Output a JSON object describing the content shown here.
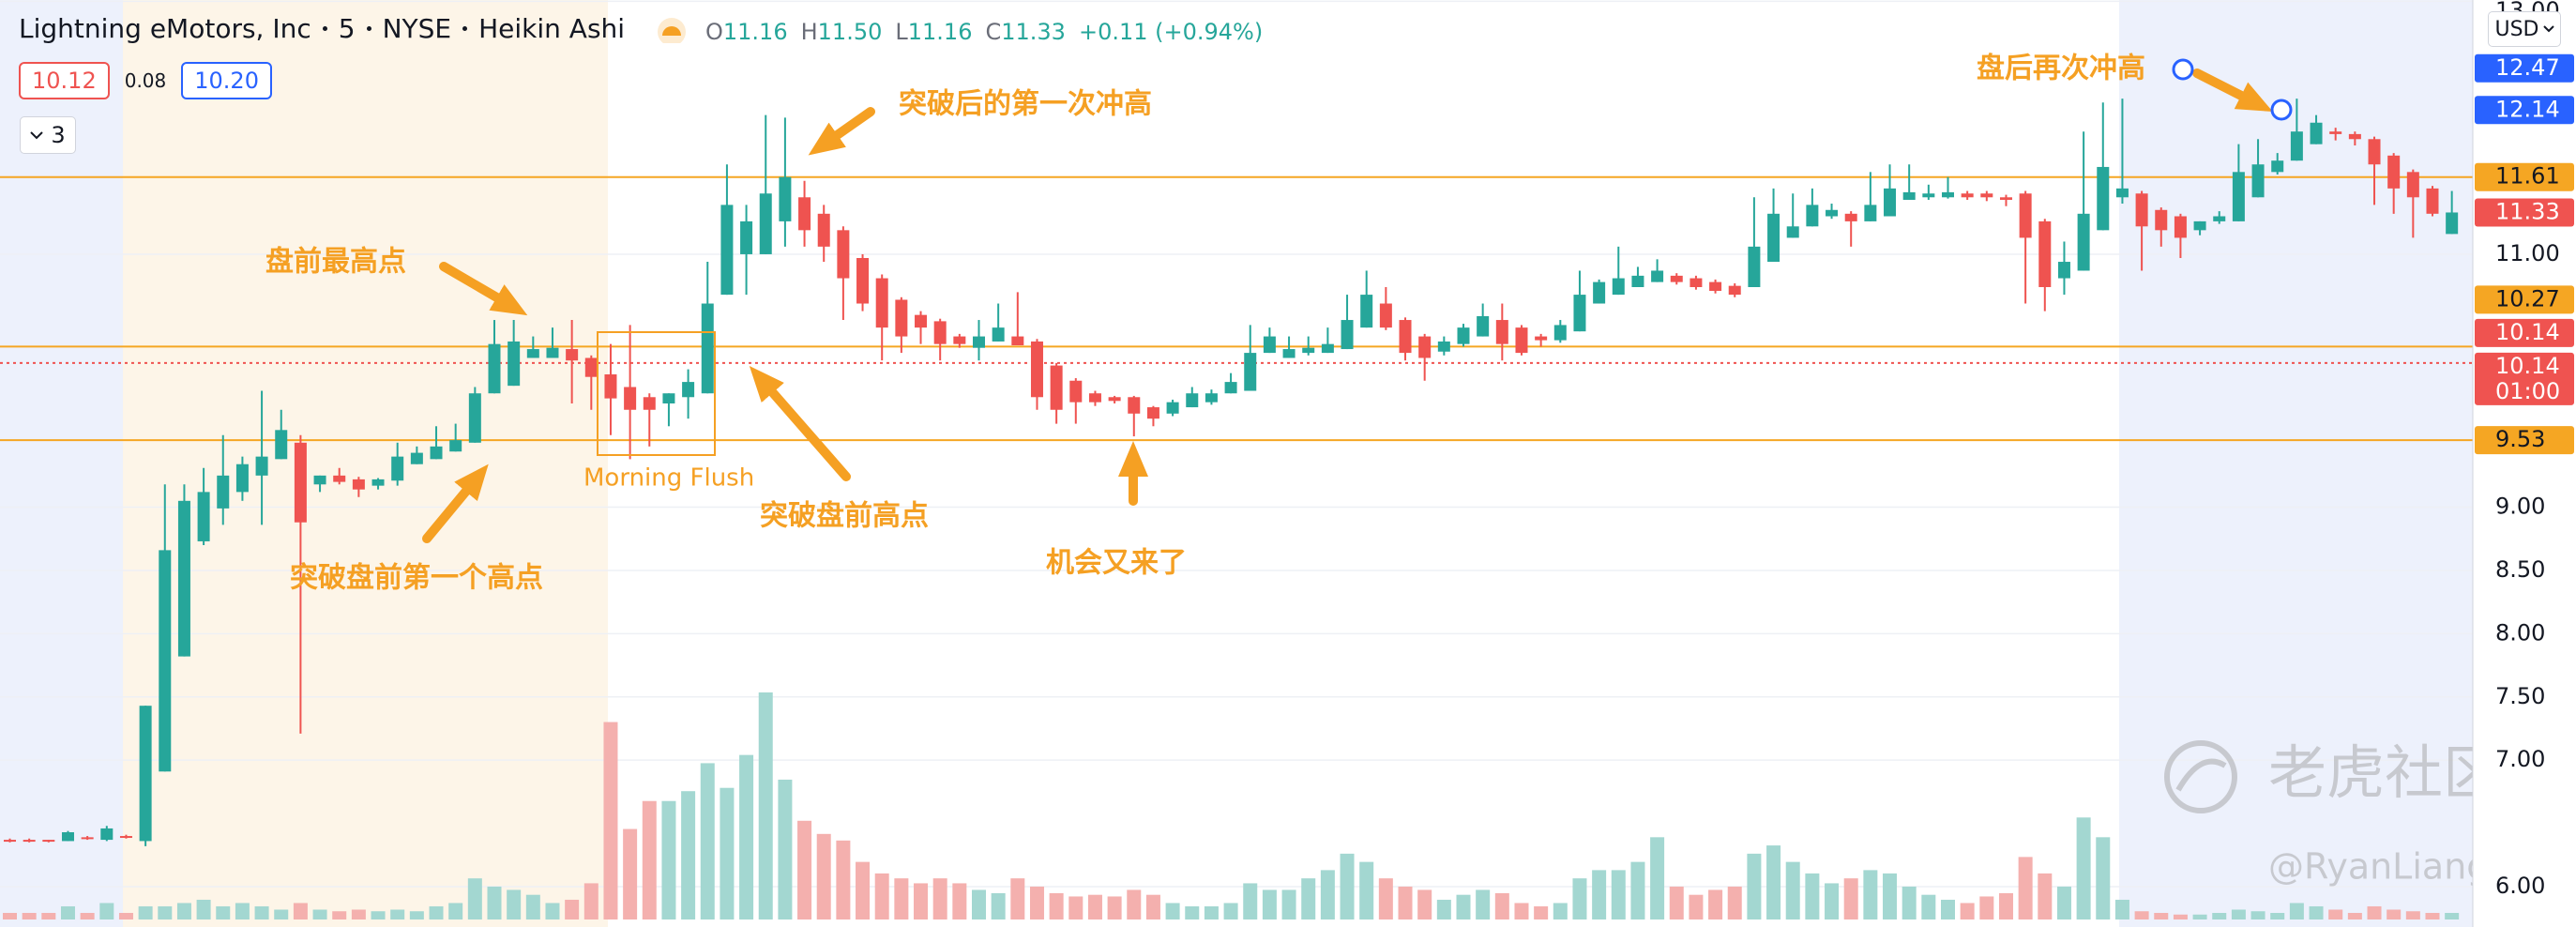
{
  "chart_data": {
    "type": "candlestick",
    "title": "Lightning eMotors, Inc",
    "interval": "5",
    "exchange": "NYSE",
    "chart_style": "Heikin Ashi",
    "ohlc_legend": [
      {
        "key": "O",
        "value": "11.16"
      },
      {
        "key": "H",
        "value": "11.50"
      },
      {
        "key": "L",
        "value": "11.16"
      },
      {
        "key": "C",
        "value": "11.33"
      }
    ],
    "change": "+0.11 (+0.94%)",
    "quote": [
      "10.12",
      "0.08",
      "10.20"
    ],
    "indicator_count": 3,
    "currency": "USD",
    "up_color": "#26a69a",
    "down_color": "#ef5350",
    "up_volume_color": "#a3d7d1",
    "down_volume_color": "#f4b0ae",
    "open": [
      6.37,
      6.37,
      6.37,
      6.36,
      6.39,
      6.37,
      6.4,
      6.36,
      6.91,
      7.82,
      8.73,
      8.99,
      9.12,
      9.25,
      9.38,
      9.51,
      9.18,
      9.25,
      9.22,
      9.17,
      9.21,
      9.34,
      9.38,
      9.44,
      9.51,
      9.9,
      9.96,
      10.18,
      10.18,
      10.25,
      10.18,
      10.05,
      9.95,
      9.87,
      9.82,
      9.87,
      9.9,
      10.68,
      11.0,
      11.0,
      11.26,
      11.45,
      11.32,
      11.19,
      10.97,
      10.81,
      10.64,
      10.52,
      10.47,
      10.35,
      10.26,
      10.31,
      10.35,
      10.31,
      10.12,
      10.0,
      9.9,
      9.87,
      9.87,
      9.79,
      9.74,
      9.79,
      9.83,
      9.9,
      9.92,
      10.22,
      10.18,
      10.22,
      10.22,
      10.25,
      10.42,
      10.61,
      10.48,
      10.35,
      10.23,
      10.29,
      10.35,
      10.48,
      10.42,
      10.35,
      10.32,
      10.39,
      10.61,
      10.68,
      10.74,
      10.78,
      10.83,
      10.81,
      10.78,
      10.75,
      10.74,
      10.94,
      11.13,
      11.22,
      11.3,
      11.32,
      11.26,
      11.3,
      11.43,
      11.45,
      11.45,
      11.48,
      11.48,
      11.45,
      11.48,
      11.26,
      10.81,
      10.87,
      11.19,
      11.45,
      11.48,
      11.35,
      11.3,
      11.19,
      11.26,
      11.26,
      11.45,
      11.65,
      11.74,
      11.87,
      11.97,
      11.95,
      11.91,
      11.78,
      11.65,
      11.52,
      11.16
    ],
    "high": [
      6.38,
      6.38,
      6.37,
      6.44,
      6.4,
      6.48,
      6.41,
      7.43,
      9.18,
      9.18,
      9.31,
      9.57,
      9.4,
      9.92,
      9.77,
      9.57,
      9.25,
      9.31,
      9.24,
      9.23,
      9.51,
      9.48,
      9.64,
      9.66,
      9.95,
      10.48,
      10.48,
      10.35,
      10.42,
      10.48,
      10.2,
      10.29,
      10.44,
      9.9,
      9.9,
      10.09,
      10.94,
      11.71,
      11.39,
      12.1,
      12.08,
      11.58,
      11.39,
      11.22,
      11.0,
      10.84,
      10.66,
      10.55,
      10.49,
      10.37,
      10.48,
      10.61,
      10.7,
      10.33,
      10.14,
      10.02,
      9.92,
      9.88,
      9.88,
      9.8,
      9.85,
      9.95,
      9.93,
      10.06,
      10.44,
      10.42,
      10.35,
      10.35,
      10.42,
      10.68,
      10.87,
      10.74,
      10.5,
      10.37,
      10.35,
      10.45,
      10.61,
      10.61,
      10.44,
      10.37,
      10.48,
      10.87,
      10.8,
      11.06,
      10.9,
      10.96,
      10.85,
      10.83,
      10.8,
      10.77,
      11.45,
      11.52,
      11.48,
      11.52,
      11.4,
      11.34,
      11.65,
      11.71,
      11.71,
      11.55,
      11.61,
      11.5,
      11.5,
      11.47,
      11.5,
      11.28,
      11.1,
      11.97,
      12.2,
      12.23,
      11.5,
      11.37,
      11.32,
      11.26,
      11.34,
      11.87,
      11.91,
      11.8,
      12.23,
      12.1,
      12.0,
      11.97,
      11.93,
      11.8,
      11.67,
      11.54,
      11.5
    ],
    "low": [
      6.35,
      6.35,
      6.35,
      6.36,
      6.37,
      6.36,
      6.38,
      6.32,
      6.91,
      7.82,
      8.7,
      8.86,
      9.05,
      8.86,
      9.38,
      7.21,
      9.12,
      9.18,
      9.08,
      9.14,
      9.17,
      9.34,
      9.38,
      9.44,
      9.51,
      9.9,
      9.96,
      10.18,
      10.18,
      9.82,
      9.77,
      9.57,
      9.38,
      9.48,
      9.64,
      9.7,
      9.9,
      10.68,
      10.68,
      11.0,
      11.06,
      11.06,
      10.94,
      10.48,
      10.55,
      10.16,
      10.22,
      10.29,
      10.16,
      10.26,
      10.16,
      10.31,
      10.28,
      9.77,
      9.66,
      9.66,
      9.8,
      9.82,
      9.56,
      9.64,
      9.72,
      9.79,
      9.81,
      9.9,
      9.92,
      10.22,
      10.18,
      10.2,
      10.22,
      10.25,
      10.42,
      10.4,
      10.16,
      10.0,
      10.2,
      10.27,
      10.35,
      10.16,
      10.2,
      10.27,
      10.3,
      10.39,
      10.61,
      10.68,
      10.74,
      10.78,
      10.76,
      10.72,
      10.69,
      10.66,
      10.74,
      10.94,
      11.13,
      11.22,
      11.28,
      11.06,
      11.26,
      11.3,
      11.43,
      11.43,
      11.44,
      11.43,
      11.42,
      11.38,
      10.61,
      10.55,
      10.68,
      10.87,
      11.19,
      11.4,
      10.87,
      11.06,
      10.97,
      11.15,
      11.24,
      11.26,
      11.45,
      11.63,
      11.74,
      11.87,
      11.9,
      11.86,
      11.39,
      11.32,
      11.13,
      11.3,
      11.16
    ],
    "close": [
      6.36,
      6.36,
      6.36,
      6.43,
      6.38,
      6.46,
      6.39,
      7.43,
      8.66,
      9.05,
      9.12,
      9.25,
      9.34,
      9.4,
      9.61,
      8.88,
      9.25,
      9.2,
      9.14,
      9.22,
      9.4,
      9.43,
      9.48,
      9.53,
      9.9,
      10.29,
      10.31,
      10.25,
      10.26,
      10.16,
      10.03,
      9.86,
      9.77,
      9.77,
      9.9,
      9.99,
      10.61,
      11.39,
      11.26,
      11.48,
      11.61,
      11.19,
      11.06,
      10.81,
      10.61,
      10.42,
      10.35,
      10.42,
      10.29,
      10.29,
      10.35,
      10.42,
      10.28,
      9.87,
      9.77,
      9.83,
      9.83,
      9.84,
      9.74,
      9.7,
      9.83,
      9.9,
      9.9,
      9.99,
      10.22,
      10.35,
      10.25,
      10.26,
      10.29,
      10.48,
      10.68,
      10.42,
      10.22,
      10.18,
      10.31,
      10.42,
      10.51,
      10.29,
      10.22,
      10.32,
      10.44,
      10.68,
      10.78,
      10.81,
      10.83,
      10.87,
      10.78,
      10.74,
      10.71,
      10.68,
      11.06,
      11.32,
      11.22,
      11.39,
      11.35,
      11.26,
      11.39,
      11.52,
      11.49,
      11.48,
      11.49,
      11.45,
      11.45,
      11.43,
      11.13,
      10.74,
      10.94,
      11.32,
      11.69,
      11.52,
      11.22,
      11.19,
      11.13,
      11.26,
      11.3,
      11.65,
      11.71,
      11.74,
      11.97,
      12.04,
      11.95,
      11.91,
      11.71,
      11.52,
      11.45,
      11.32,
      11.33
    ],
    "volume": [
      4,
      4,
      4,
      8,
      4,
      10,
      4,
      8,
      8,
      10,
      12,
      8,
      10,
      8,
      6,
      10,
      6,
      5,
      6,
      5,
      6,
      5,
      8,
      10,
      25,
      20,
      18,
      15,
      10,
      12,
      22,
      120,
      55,
      72,
      72,
      78,
      95,
      80,
      100,
      138,
      85,
      60,
      52,
      48,
      35,
      28,
      25,
      22,
      25,
      22,
      18,
      16,
      25,
      20,
      16,
      14,
      15,
      14,
      18,
      15,
      10,
      8,
      8,
      10,
      22,
      18,
      18,
      25,
      30,
      40,
      35,
      25,
      20,
      18,
      12,
      15,
      18,
      16,
      10,
      8,
      10,
      25,
      30,
      30,
      35,
      50,
      20,
      15,
      18,
      20,
      40,
      45,
      35,
      28,
      22,
      25,
      30,
      28,
      20,
      15,
      12,
      10,
      14,
      16,
      38,
      28,
      20,
      62,
      50,
      12,
      5,
      4,
      3,
      3,
      4,
      6,
      5,
      4,
      10,
      8,
      6,
      4,
      8,
      6,
      5,
      4,
      4
    ],
    "ylim": [
      5.74,
      13.01
    ],
    "yticks": [
      {
        "value": 13,
        "label": "13.00"
      },
      {
        "value": 11,
        "label": "11.00"
      },
      {
        "value": 9,
        "label": "9.00"
      },
      {
        "value": 8.5,
        "label": "8.50"
      },
      {
        "value": 8,
        "label": "8.00"
      },
      {
        "value": 7.5,
        "label": "7.50"
      },
      {
        "value": 7,
        "label": "7.00"
      },
      {
        "value": 6,
        "label": "6.00"
      }
    ],
    "grid": true,
    "price_labels": [
      {
        "value": 12.47,
        "color": "#2962ff"
      },
      {
        "value": 12.14,
        "color": "#2962ff"
      },
      {
        "value": 11.61,
        "color": "#f5a623",
        "line": "solid"
      },
      {
        "value": 11.33,
        "color": "#ef5350"
      },
      {
        "value": 10.27,
        "color": "#f5a623",
        "line": "solid"
      },
      {
        "value": 10.14,
        "color": "#ef5350"
      },
      {
        "value": 10.14,
        "sublabel": "01:00",
        "color": "#ef5350",
        "line": "dotted"
      },
      {
        "value": 9.53,
        "color": "#f5a623",
        "line": "solid"
      }
    ],
    "annotations": [
      "突破后的第一次冲高",
      "盘前最高点",
      "突破盘前第一个高点",
      "Morning Flush",
      "突破盘前高点",
      "机会又来了",
      "盘后再次冲高"
    ],
    "watermark": "老虎社区",
    "watermark_handle": "@RyanLiang"
  }
}
